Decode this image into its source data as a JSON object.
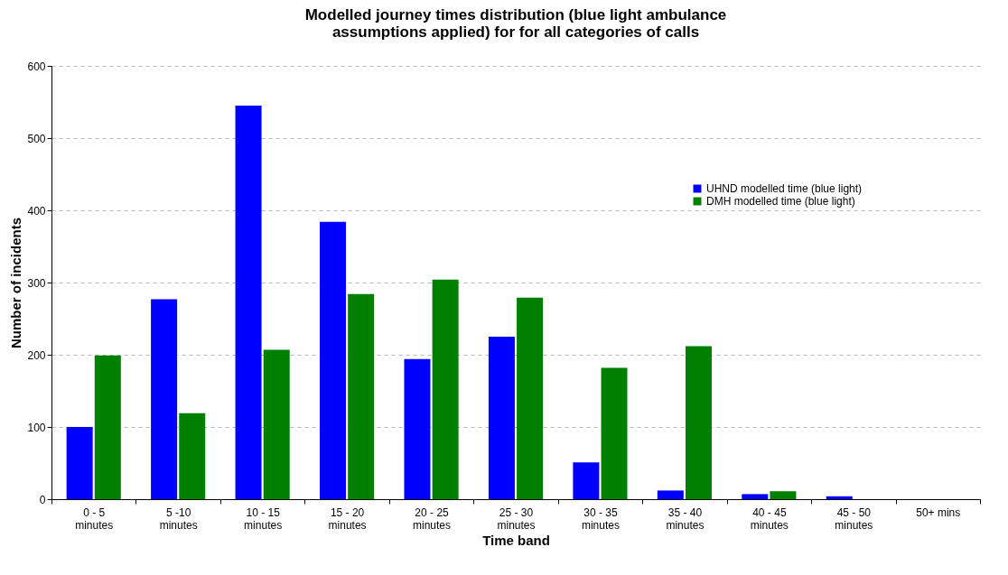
{
  "chart_data": {
    "type": "bar",
    "title": "Modelled journey times distribution (blue light ambulance assumptions applied) for for all categories of calls",
    "xlabel": "Time band",
    "ylabel": "Number of incidents",
    "categories": [
      "0 - 5\nminutes",
      "5 -10\nminutes",
      "10 - 15\nminutes",
      "15 - 20\nminutes",
      "20 - 25\nminutes",
      "25 - 30\nminutes",
      "30 - 35\nminutes",
      "35 - 40\nminutes",
      "40 - 45\nminutes",
      "45 - 50\nminutes",
      "50+ mins"
    ],
    "series": [
      {
        "name": "UHND modelled time (blue light)",
        "color": "#0000ff",
        "values": [
          100,
          277,
          545,
          384,
          194,
          225,
          51,
          12,
          7,
          4,
          0
        ]
      },
      {
        "name": "DMH modelled time (blue light)",
        "color": "#008000",
        "values": [
          199,
          119,
          207,
          284,
          304,
          279,
          182,
          212,
          11,
          0,
          0
        ]
      }
    ],
    "ylim": [
      0,
      600
    ],
    "yticks": [
      0,
      100,
      200,
      300,
      400,
      500,
      600
    ],
    "grid": "y",
    "legend": "top right"
  }
}
